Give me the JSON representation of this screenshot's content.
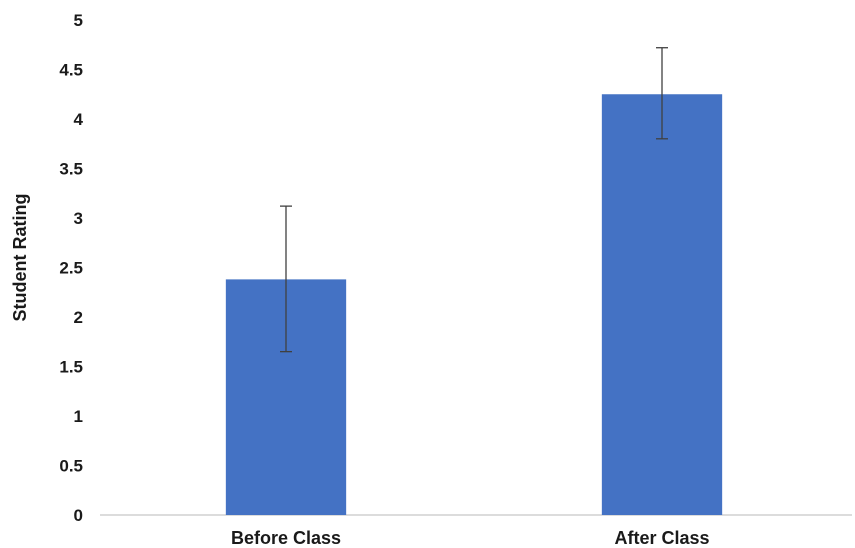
{
  "chart_data": {
    "type": "bar",
    "categories": [
      "Before Class",
      "After Class"
    ],
    "values": [
      2.38,
      4.25
    ],
    "error_bars": [
      {
        "low": 1.65,
        "high": 3.12
      },
      {
        "low": 3.8,
        "high": 4.72
      }
    ],
    "ylabel": "Student Rating",
    "xlabel": "",
    "ylim": [
      0,
      5
    ],
    "yticks": [
      "0",
      "0.5",
      "1",
      "1.5",
      "2",
      "2.5",
      "3",
      "3.5",
      "4",
      "4.5",
      "5"
    ],
    "grid": false,
    "bar_color": "#4472C4",
    "error_bar_color": "#404040"
  }
}
